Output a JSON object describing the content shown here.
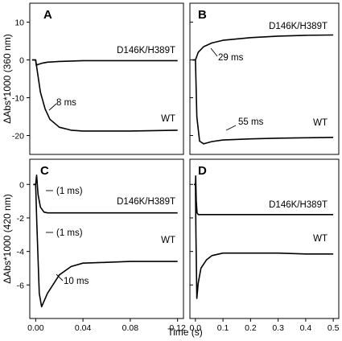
{
  "chart_data": [
    {
      "panel": "A",
      "type": "line",
      "xlim": [
        -0.005,
        0.125
      ],
      "ylim": [
        -25,
        15
      ],
      "yticks": [
        10,
        0,
        -10,
        -20
      ],
      "series": [
        {
          "name": "D146K/H389T",
          "x": [
            -0.003,
            0.0,
            0.0005,
            0.002,
            0.005,
            0.01,
            0.02,
            0.04,
            0.08,
            0.12
          ],
          "y": [
            0,
            0,
            -1.4,
            -1.2,
            -0.9,
            -0.6,
            -0.4,
            -0.2,
            -0.2,
            -0.2
          ]
        },
        {
          "name": "WT",
          "x": [
            -0.003,
            0.0,
            0.004,
            0.008,
            0.012,
            0.02,
            0.03,
            0.04,
            0.08,
            0.12
          ],
          "y": [
            0,
            0,
            -8.5,
            -13.0,
            -15.7,
            -17.8,
            -18.6,
            -18.8,
            -18.8,
            -18.6
          ]
        }
      ],
      "annotations": [
        {
          "text": "8 ms",
          "x": 0.008,
          "y": -13.0
        }
      ]
    },
    {
      "panel": "B",
      "type": "line",
      "xlim": [
        -0.02,
        0.52
      ],
      "ylim": [
        -25,
        15
      ],
      "yticks": [
        10,
        0,
        -10,
        -20
      ],
      "series": [
        {
          "name": "D146K/H389T",
          "x": [
            -0.01,
            0.0,
            0.01,
            0.03,
            0.06,
            0.1,
            0.2,
            0.3,
            0.4,
            0.5
          ],
          "y": [
            0,
            0,
            2.0,
            3.5,
            4.5,
            5.2,
            5.9,
            6.3,
            6.5,
            6.6
          ]
        },
        {
          "name": "WT",
          "x": [
            -0.01,
            0.0,
            0.005,
            0.015,
            0.03,
            0.06,
            0.1,
            0.2,
            0.3,
            0.4,
            0.5
          ],
          "y": [
            0,
            0,
            -15,
            -21.5,
            -22.2,
            -21.6,
            -21.2,
            -20.9,
            -20.7,
            -20.6,
            -20.5
          ]
        }
      ],
      "annotations": [
        {
          "text": "29 ms",
          "x": 0.03,
          "y": 3.5
        },
        {
          "text": "55 ms",
          "x": 0.08,
          "y": -21.5
        }
      ]
    },
    {
      "panel": "C",
      "type": "line",
      "xlim": [
        -0.005,
        0.125
      ],
      "ylim": [
        -8,
        1.5
      ],
      "yticks": [
        0,
        -2,
        -4,
        -6
      ],
      "series": [
        {
          "name": "D146K/H389T",
          "x": [
            -0.002,
            0.0,
            0.0008,
            0.002,
            0.004,
            0.007,
            0.01,
            0.04,
            0.08,
            0.12
          ],
          "y": [
            0,
            0,
            0.55,
            -0.6,
            -1.35,
            -1.65,
            -1.7,
            -1.7,
            -1.7,
            -1.7
          ]
        },
        {
          "name": "WT",
          "x": [
            -0.002,
            0.0,
            0.001,
            0.003,
            0.005,
            0.01,
            0.02,
            0.03,
            0.04,
            0.06,
            0.08,
            0.12
          ],
          "y": [
            0,
            0,
            -2.4,
            -6.5,
            -7.3,
            -6.5,
            -5.4,
            -4.9,
            -4.7,
            -4.65,
            -4.6,
            -4.6
          ]
        }
      ],
      "annotations": [
        {
          "text": "(1 ms)",
          "x": 0.001,
          "y": 0.0
        },
        {
          "text": "(1 ms)",
          "x": 0.001,
          "y": -2.4
        },
        {
          "text": "10 ms",
          "x": 0.012,
          "y": -6.4
        }
      ]
    },
    {
      "panel": "D",
      "type": "line",
      "xlim": [
        -0.02,
        0.52
      ],
      "ylim": [
        -8,
        1.5
      ],
      "yticks": [
        0,
        -2,
        -4,
        -6
      ],
      "xticks": [
        0.0,
        0.1,
        0.2,
        0.3,
        0.4,
        0.5
      ],
      "series": [
        {
          "name": "D146K/H389T",
          "x": [
            -0.005,
            0.0,
            0.001,
            0.003,
            0.006,
            0.01,
            0.05,
            0.1,
            0.2,
            0.3,
            0.4,
            0.5
          ],
          "y": [
            0,
            0,
            0.5,
            -1.0,
            -1.7,
            -1.8,
            -1.8,
            -1.8,
            -1.8,
            -1.8,
            -1.8,
            -1.8
          ]
        },
        {
          "name": "WT",
          "x": [
            -0.005,
            0.0,
            0.002,
            0.005,
            0.01,
            0.02,
            0.04,
            0.06,
            0.1,
            0.2,
            0.3,
            0.4,
            0.5
          ],
          "y": [
            0,
            0,
            -3.0,
            -6.8,
            -5.9,
            -5.0,
            -4.5,
            -4.25,
            -4.1,
            -4.1,
            -4.1,
            -4.15,
            -4.15
          ]
        }
      ],
      "annotations": []
    }
  ],
  "labels": {
    "y_top": "ΔAbs*1000 (360 nm)",
    "y_bottom": "ΔAbs*1000 (420 nm)",
    "x": "Time (s)"
  },
  "ticks": {
    "left_x": [
      "0.00",
      "0.04",
      "0.08",
      "0.12"
    ],
    "right_x": [
      "0.0",
      "0.1",
      "0.2",
      "0.3",
      "0.4",
      "0.5"
    ],
    "top_y": [
      "10",
      "0",
      "-10",
      "-20"
    ],
    "bottom_y": [
      "0",
      "-2",
      "-4",
      "-6"
    ]
  }
}
